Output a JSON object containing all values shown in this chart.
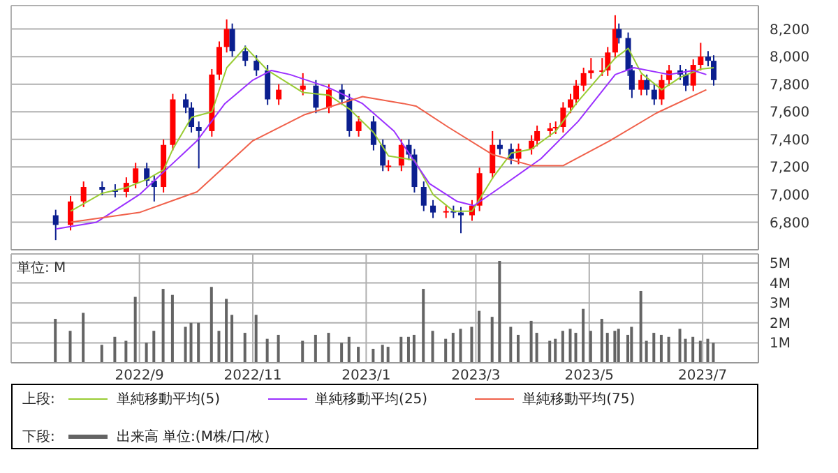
{
  "chart_data": [
    {
      "type": "candlestick",
      "legend": "bottom",
      "legend_title": "上段:",
      "grid": true,
      "tick_labels": "y",
      "xlim": [
        "2022-06-24",
        "2023-07-31"
      ],
      "ylim": [
        6600,
        8370
      ],
      "xticks": [
        {
          "value": "2022-09-01",
          "label": null
        },
        {
          "value": "2022-11-01",
          "label": null
        },
        {
          "value": "2023-01-01",
          "label": null
        },
        {
          "value": "2023-03-01",
          "label": null
        },
        {
          "value": "2023-05-01",
          "label": null
        },
        {
          "value": "2023-07-01",
          "label": null
        }
      ],
      "yticks": [
        {
          "value": 6800,
          "label": "6,800"
        },
        {
          "value": 7000,
          "label": "7,000"
        },
        {
          "value": 7200,
          "label": "7,200"
        },
        {
          "value": 7400,
          "label": "7,400"
        },
        {
          "value": 7600,
          "label": "7,600"
        },
        {
          "value": 7800,
          "label": "7,800"
        },
        {
          "value": 8000,
          "label": "8,000"
        },
        {
          "value": 8200,
          "label": "8,200"
        }
      ],
      "x": [
        "2022-07-18",
        "2022-07-26",
        "2022-08-02",
        "2022-08-12",
        "2022-08-19",
        "2022-08-25",
        "2022-08-30",
        "2022-09-05",
        "2022-09-09",
        "2022-09-14",
        "2022-09-19",
        "2022-09-26",
        "2022-09-29",
        "2022-10-03",
        "2022-10-10",
        "2022-10-14",
        "2022-10-18",
        "2022-10-21",
        "2022-10-28",
        "2022-11-03",
        "2022-11-09",
        "2022-11-15",
        "2022-11-28",
        "2022-12-05",
        "2022-12-12",
        "2022-12-19",
        "2022-12-23",
        "2022-12-28",
        "2023-01-05",
        "2023-01-10",
        "2023-01-13",
        "2023-01-20",
        "2023-01-24",
        "2023-01-27",
        "2023-02-01",
        "2023-02-06",
        "2023-02-13",
        "2023-02-17",
        "2023-02-21",
        "2023-02-27",
        "2023-03-03",
        "2023-03-10",
        "2023-03-14",
        "2023-03-20",
        "2023-03-24",
        "2023-03-31",
        "2023-04-03",
        "2023-04-10",
        "2023-04-13",
        "2023-04-17",
        "2023-04-21",
        "2023-04-24",
        "2023-04-28",
        "2023-05-02",
        "2023-05-08",
        "2023-05-11",
        "2023-05-15",
        "2023-05-17",
        "2023-05-22",
        "2023-05-24",
        "2023-05-29",
        "2023-06-01",
        "2023-06-05",
        "2023-06-09",
        "2023-06-13",
        "2023-06-19",
        "2023-06-22",
        "2023-06-26",
        "2023-06-30",
        "2023-07-04",
        "2023-07-07"
      ],
      "ohlc": [
        [
          6850,
          6890,
          6670,
          6780
        ],
        [
          6780,
          6990,
          6740,
          6950
        ],
        [
          6950,
          7095,
          6910,
          7055
        ],
        [
          7055,
          7095,
          6995,
          7035
        ],
        [
          7035,
          7075,
          6980,
          7020
        ],
        [
          7020,
          7125,
          6980,
          7085
        ],
        [
          7085,
          7230,
          7045,
          7190
        ],
        [
          7190,
          7230,
          7060,
          7100
        ],
        [
          7100,
          7140,
          6950,
          7055
        ],
        [
          7055,
          7400,
          7015,
          7360
        ],
        [
          7360,
          7730,
          7320,
          7690
        ],
        [
          7690,
          7730,
          7590,
          7630
        ],
        [
          7630,
          7670,
          7450,
          7490
        ],
        [
          7490,
          7530,
          7190,
          7460
        ],
        [
          7460,
          7910,
          7420,
          7870
        ],
        [
          7870,
          8110,
          7830,
          8070
        ],
        [
          8070,
          8270,
          8030,
          8200
        ],
        [
          8200,
          8240,
          8000,
          8040
        ],
        [
          8040,
          8080,
          7930,
          7970
        ],
        [
          7970,
          8010,
          7860,
          7900
        ],
        [
          7900,
          7940,
          7650,
          7690
        ],
        [
          7690,
          7800,
          7650,
          7760
        ],
        [
          7760,
          7880,
          7720,
          7790
        ],
        [
          7790,
          7830,
          7590,
          7630
        ],
        [
          7630,
          7800,
          7590,
          7760
        ],
        [
          7760,
          7800,
          7650,
          7690
        ],
        [
          7690,
          7730,
          7420,
          7460
        ],
        [
          7460,
          7570,
          7420,
          7530
        ],
        [
          7530,
          7570,
          7320,
          7360
        ],
        [
          7360,
          7400,
          7170,
          7210
        ],
        [
          7210,
          7250,
          7170,
          7210
        ],
        [
          7210,
          7400,
          7170,
          7360
        ],
        [
          7360,
          7400,
          7250,
          7290
        ],
        [
          7290,
          7330,
          7015,
          7055
        ],
        [
          7055,
          7095,
          6880,
          6920
        ],
        [
          6920,
          6960,
          6830,
          6870
        ],
        [
          6870,
          6920,
          6830,
          6880
        ],
        [
          6880,
          6920,
          6830,
          6870
        ],
        [
          6870,
          6910,
          6720,
          6850
        ],
        [
          6850,
          6960,
          6810,
          6920
        ],
        [
          6920,
          7195,
          6880,
          7155
        ],
        [
          7155,
          7460,
          7115,
          7360
        ],
        [
          7360,
          7400,
          7290,
          7330
        ],
        [
          7330,
          7370,
          7220,
          7260
        ],
        [
          7260,
          7370,
          7220,
          7330
        ],
        [
          7330,
          7430,
          7290,
          7390
        ],
        [
          7390,
          7500,
          7350,
          7460
        ],
        [
          7460,
          7520,
          7420,
          7480
        ],
        [
          7480,
          7530,
          7440,
          7490
        ],
        [
          7490,
          7670,
          7450,
          7630
        ],
        [
          7630,
          7730,
          7590,
          7690
        ],
        [
          7690,
          7830,
          7650,
          7790
        ],
        [
          7790,
          7920,
          7750,
          7880
        ],
        [
          7880,
          7990,
          7840,
          7900
        ],
        [
          7900,
          7990,
          7860,
          7900
        ],
        [
          7900,
          8070,
          7860,
          8030
        ],
        [
          8030,
          8300,
          7990,
          8200
        ],
        [
          8200,
          8240,
          8095,
          8135
        ],
        [
          8135,
          8175,
          7860,
          7900
        ],
        [
          7900,
          7940,
          7700,
          7760
        ],
        [
          7760,
          7870,
          7720,
          7830
        ],
        [
          7830,
          7870,
          7720,
          7760
        ],
        [
          7760,
          7800,
          7650,
          7690
        ],
        [
          7690,
          7870,
          7650,
          7830
        ],
        [
          7830,
          7940,
          7790,
          7900
        ],
        [
          7900,
          7940,
          7830,
          7870
        ],
        [
          7870,
          7910,
          7750,
          7790
        ],
        [
          7790,
          7980,
          7750,
          7940
        ],
        [
          7940,
          8100,
          7900,
          8000
        ],
        [
          8000,
          8040,
          7930,
          7970
        ],
        [
          7970,
          8010,
          7790,
          7830
        ]
      ],
      "colors": [
        "#0b1f8f",
        "#ff0000",
        "#ff0000",
        "#0b1f8f",
        "#0b1f8f",
        "#ff0000",
        "#ff0000",
        "#0b1f8f",
        "#0b1f8f",
        "#ff0000",
        "#ff0000",
        "#0b1f8f",
        "#0b1f8f",
        "#0b1f8f",
        "#ff0000",
        "#ff0000",
        "#ff0000",
        "#0b1f8f",
        "#0b1f8f",
        "#0b1f8f",
        "#0b1f8f",
        "#ff0000",
        "#ff0000",
        "#0b1f8f",
        "#ff0000",
        "#0b1f8f",
        "#0b1f8f",
        "#ff0000",
        "#0b1f8f",
        "#0b1f8f",
        "#ff0000",
        "#ff0000",
        "#0b1f8f",
        "#0b1f8f",
        "#0b1f8f",
        "#0b1f8f",
        "#ff0000",
        "#0b1f8f",
        "#0b1f8f",
        "#ff0000",
        "#ff0000",
        "#ff0000",
        "#0b1f8f",
        "#0b1f8f",
        "#ff0000",
        "#ff0000",
        "#ff0000",
        "#ff0000",
        "#ff0000",
        "#ff0000",
        "#ff0000",
        "#ff0000",
        "#ff0000",
        "#ff0000",
        "#ff0000",
        "#ff0000",
        "#ff0000",
        "#0b1f8f",
        "#0b1f8f",
        "#0b1f8f",
        "#ff0000",
        "#0b1f8f",
        "#0b1f8f",
        "#ff0000",
        "#ff0000",
        "#0b1f8f",
        "#0b1f8f",
        "#ff0000",
        "#ff0000",
        "#0b1f8f",
        "#0b1f8f"
      ],
      "series": [
        {
          "type": "line",
          "name": "単純移動平均(5)",
          "color": "#99cc33",
          "x": [
            "2022-07-26",
            "2022-08-12",
            "2022-08-25",
            "2022-09-05",
            "2022-09-14",
            "2022-09-19",
            "2022-09-29",
            "2022-10-10",
            "2022-10-18",
            "2022-10-28",
            "2022-11-09",
            "2022-11-28",
            "2022-12-12",
            "2022-12-23",
            "2023-01-05",
            "2023-01-13",
            "2023-01-27",
            "2023-02-06",
            "2023-02-17",
            "2023-02-27",
            "2023-03-10",
            "2023-03-20",
            "2023-03-31",
            "2023-04-13",
            "2023-04-24",
            "2023-05-08",
            "2023-05-15",
            "2023-05-22",
            "2023-05-29",
            "2023-06-09",
            "2023-06-19",
            "2023-06-30",
            "2023-07-07"
          ],
          "values": [
            6880,
            7010,
            7050,
            7110,
            7180,
            7330,
            7560,
            7600,
            7920,
            8070,
            7900,
            7740,
            7720,
            7620,
            7450,
            7280,
            7250,
            7000,
            6880,
            6880,
            7120,
            7300,
            7330,
            7460,
            7660,
            7880,
            7990,
            8060,
            7880,
            7760,
            7850,
            7910,
            7920
          ]
        },
        {
          "type": "line",
          "name": "単純移動平均(25)",
          "color": "#9b30ff",
          "x": [
            "2022-07-18",
            "2022-08-09",
            "2022-09-01",
            "2022-10-02",
            "2022-10-17",
            "2022-11-01",
            "2022-11-11",
            "2022-11-21",
            "2022-12-11",
            "2022-12-30",
            "2023-01-16",
            "2023-01-21",
            "2023-02-04",
            "2023-02-19",
            "2023-02-28",
            "2023-03-15",
            "2023-04-05",
            "2023-04-25",
            "2023-05-15",
            "2023-05-25",
            "2023-06-13",
            "2023-06-26",
            "2023-07-03"
          ],
          "values": [
            6750,
            6800,
            7000,
            7390,
            7660,
            7830,
            7900,
            7870,
            7780,
            7660,
            7460,
            7360,
            7080,
            6950,
            6920,
            7060,
            7260,
            7530,
            7870,
            7920,
            7870,
            7900,
            7870
          ]
        },
        {
          "type": "line",
          "name": "単純移動平均(75)",
          "color": "#f0604a",
          "x": [
            "2022-07-26",
            "2022-09-01",
            "2022-10-02",
            "2022-11-01",
            "2022-11-29",
            "2022-12-30",
            "2023-01-21",
            "2023-01-28",
            "2023-02-14",
            "2023-03-10",
            "2023-03-31",
            "2023-04-17",
            "2023-05-12",
            "2023-06-06",
            "2023-07-03"
          ],
          "values": [
            6800,
            6870,
            7020,
            7390,
            7580,
            7710,
            7660,
            7640,
            7490,
            7290,
            7210,
            7210,
            7390,
            7590,
            7760
          ]
        }
      ]
    },
    {
      "type": "bar",
      "legend": "bottom",
      "legend_title": "下段:",
      "grid": true,
      "annotations": [
        "単位: M"
      ],
      "xlim": [
        "2022-06-24",
        "2023-07-31"
      ],
      "ylim": [
        0,
        5.45
      ],
      "xticks": [
        {
          "value": "2022-09-01",
          "label": "2022/9"
        },
        {
          "value": "2022-11-01",
          "label": "2022/11"
        },
        {
          "value": "2023-01-01",
          "label": "2023/1"
        },
        {
          "value": "2023-03-01",
          "label": "2023/3"
        },
        {
          "value": "2023-05-01",
          "label": "2023/5"
        },
        {
          "value": "2023-07-01",
          "label": "2023/7"
        }
      ],
      "yticks": [
        {
          "value": 1,
          "label": "1M"
        },
        {
          "value": 2,
          "label": "2M"
        },
        {
          "value": 3,
          "label": "3M"
        },
        {
          "value": 4,
          "label": "4M"
        },
        {
          "value": 5,
          "label": "5M"
        }
      ],
      "x": [
        "2022-07-18",
        "2022-07-26",
        "2022-08-02",
        "2022-08-12",
        "2022-08-19",
        "2022-08-25",
        "2022-08-30",
        "2022-09-05",
        "2022-09-09",
        "2022-09-14",
        "2022-09-19",
        "2022-09-26",
        "2022-09-29",
        "2022-10-03",
        "2022-10-10",
        "2022-10-14",
        "2022-10-18",
        "2022-10-21",
        "2022-10-28",
        "2022-11-03",
        "2022-11-09",
        "2022-11-15",
        "2022-11-28",
        "2022-12-05",
        "2022-12-12",
        "2022-12-19",
        "2022-12-23",
        "2022-12-28",
        "2023-01-05",
        "2023-01-10",
        "2023-01-13",
        "2023-01-20",
        "2023-01-24",
        "2023-01-27",
        "2023-02-01",
        "2023-02-06",
        "2023-02-13",
        "2023-02-17",
        "2023-02-21",
        "2023-02-27",
        "2023-03-03",
        "2023-03-10",
        "2023-03-14",
        "2023-03-20",
        "2023-03-24",
        "2023-03-31",
        "2023-04-03",
        "2023-04-10",
        "2023-04-13",
        "2023-04-17",
        "2023-04-21",
        "2023-04-24",
        "2023-04-28",
        "2023-05-02",
        "2023-05-08",
        "2023-05-11",
        "2023-05-15",
        "2023-05-17",
        "2023-05-22",
        "2023-05-24",
        "2023-05-29",
        "2023-06-01",
        "2023-06-05",
        "2023-06-09",
        "2023-06-13",
        "2023-06-19",
        "2023-06-22",
        "2023-06-26",
        "2023-06-30",
        "2023-07-04",
        "2023-07-07"
      ],
      "series": [
        {
          "name": "出来高 単位:(M株/口/枚)",
          "color": "#646464",
          "values": [
            2.2,
            1.6,
            2.5,
            0.9,
            1.3,
            1.1,
            3.3,
            1.0,
            1.6,
            3.7,
            3.4,
            1.8,
            2.0,
            2.0,
            3.8,
            1.6,
            3.2,
            2.4,
            1.5,
            2.4,
            1.2,
            1.4,
            1.1,
            1.4,
            1.5,
            1.0,
            1.3,
            0.8,
            0.7,
            0.9,
            0.8,
            1.3,
            1.3,
            1.4,
            3.7,
            1.6,
            1.2,
            1.5,
            1.7,
            1.8,
            2.6,
            2.3,
            5.1,
            1.8,
            1.4,
            2.1,
            1.5,
            1.1,
            1.2,
            1.6,
            1.7,
            1.5,
            2.7,
            1.6,
            2.2,
            1.5,
            1.6,
            1.7,
            1.4,
            1.8,
            3.6,
            1.1,
            1.5,
            1.4,
            1.3,
            1.7,
            1.2,
            1.3,
            1.1,
            1.2,
            1.0
          ]
        }
      ]
    }
  ]
}
